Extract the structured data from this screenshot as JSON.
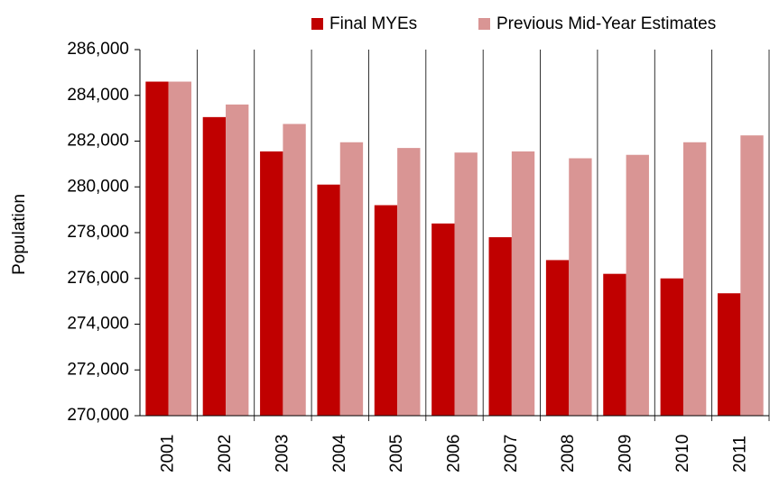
{
  "chart_data": {
    "type": "bar",
    "y_label": "Population",
    "categories": [
      "2001",
      "2002",
      "2003",
      "2004",
      "2005",
      "2006",
      "2007",
      "2008",
      "2009",
      "2010",
      "2011"
    ],
    "series": [
      {
        "name": "Final MYEs",
        "color": "#c00000",
        "values": [
          284600,
          283050,
          281550,
          280100,
          279200,
          278400,
          277800,
          276800,
          276200,
          276000,
          275350
        ]
      },
      {
        "name": "Previous Mid-Year Estimates",
        "color": "#d99594",
        "values": [
          284600,
          283600,
          282750,
          281950,
          281700,
          281500,
          281550,
          281250,
          281400,
          281950,
          282250
        ]
      }
    ],
    "ylim": [
      270000,
      286000
    ],
    "yticks": [
      {
        "value": 270000,
        "label": "270,000"
      },
      {
        "value": 272000,
        "label": "272,000"
      },
      {
        "value": 274000,
        "label": "274,000"
      },
      {
        "value": 276000,
        "label": "276,000"
      },
      {
        "value": 278000,
        "label": "278,000"
      },
      {
        "value": 280000,
        "label": "280,000"
      },
      {
        "value": 282000,
        "label": "282,000"
      },
      {
        "value": 284000,
        "label": "284,000"
      },
      {
        "value": 286000,
        "label": "286,000"
      }
    ],
    "legend_position": "top-right",
    "grid": "x"
  }
}
